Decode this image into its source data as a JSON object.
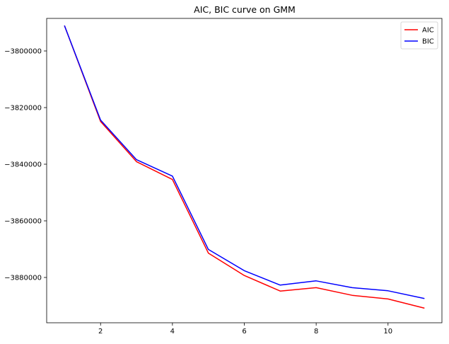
{
  "chart_data": {
    "type": "line",
    "title": "AIC, BIC curve on GMM",
    "xlabel": "",
    "ylabel": "",
    "xlim": [
      0.5,
      11.5
    ],
    "ylim": [
      -3896000,
      -3788500
    ],
    "x_ticks": [
      2,
      4,
      6,
      8,
      10
    ],
    "x_tick_labels": [
      "2",
      "4",
      "6",
      "8",
      "10"
    ],
    "y_ticks": [
      -3800000,
      -3820000,
      -3840000,
      -3860000,
      -3880000
    ],
    "y_tick_labels": [
      "−3800000",
      "−3820000",
      "−3840000",
      "−3860000",
      "−3880000"
    ],
    "grid": false,
    "legend_position": "top-right",
    "x": [
      1,
      2,
      3,
      4,
      5,
      6,
      7,
      8,
      9,
      10,
      11
    ],
    "series": [
      {
        "name": "AIC",
        "color": "#ff0000",
        "values": [
          -3791200,
          -3824900,
          -3839100,
          -3845400,
          -3871400,
          -3879300,
          -3884800,
          -3883600,
          -3886300,
          -3887600,
          -3890800
        ]
      },
      {
        "name": "BIC",
        "color": "#0000ff",
        "values": [
          -3791200,
          -3824400,
          -3838400,
          -3844200,
          -3870100,
          -3877600,
          -3882700,
          -3881200,
          -3883600,
          -3884700,
          -3887400
        ]
      }
    ]
  }
}
